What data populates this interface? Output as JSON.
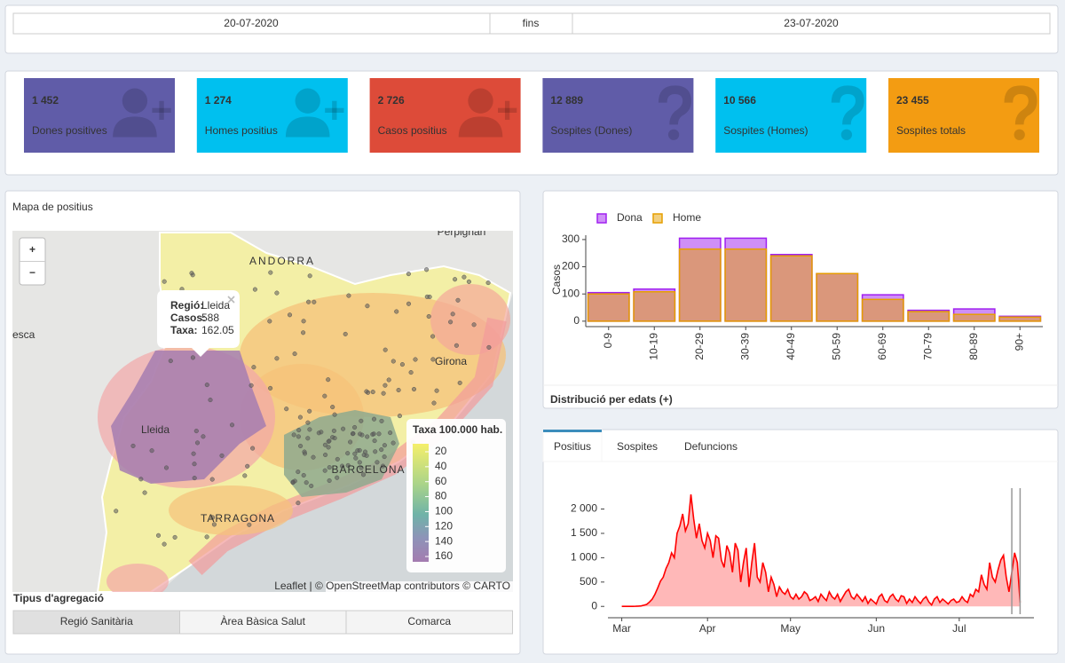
{
  "date_range": {
    "start": "20-07-2020",
    "separator": "fins",
    "end": "23-07-2020"
  },
  "value_boxes": [
    {
      "value": "1 452",
      "label": "Dones positives",
      "color": "#605ca8"
    },
    {
      "value": "1 274",
      "label": "Homes positius",
      "color": "#00c0ef"
    },
    {
      "value": "2 726",
      "label": "Casos positius",
      "color": "#dd4b39"
    },
    {
      "value": "12 889",
      "label": "Sospites (Dones)",
      "color": "#605ca8"
    },
    {
      "value": "10 566",
      "label": "Sospites (Homes)",
      "color": "#00c0ef"
    },
    {
      "value": "23 455",
      "label": "Sospites totals",
      "color": "#f39c12"
    }
  ],
  "map": {
    "title": "Mapa de positius",
    "zoom_in": "+",
    "zoom_out": "−",
    "place_labels": [
      "ANDORRA",
      "Perpignan",
      "esca",
      "Lleida",
      "Girona",
      "BARCELONA",
      "TARRAGONA"
    ],
    "popup": {
      "rows": [
        {
          "key": "Regió:",
          "value": "Lleida"
        },
        {
          "key": "Casos:",
          "value": 588
        },
        {
          "key": "Taxa:",
          "value": 162.05
        }
      ]
    },
    "legend": {
      "title": "Taxa 100.000 hab.",
      "ticks": [
        20,
        40,
        60,
        80,
        100,
        120,
        140,
        160
      ]
    },
    "attribution": "Leaflet | © OpenStreetMap contributors © CARTO"
  },
  "aggregation": {
    "title": "Tipus d'agregació",
    "options": [
      "Regió Sanitària",
      "Àrea Bàsica Salut",
      "Comarca"
    ],
    "selected": 0
  },
  "tabs": {
    "items": [
      "Positius",
      "Sospites",
      "Defuncions"
    ],
    "active": 0
  },
  "chart_data": [
    {
      "type": "bar",
      "barmode": "overlay",
      "ylabel": "Casos",
      "footer": "Distribució per edats (+)",
      "categories": [
        "0-9",
        "10-19",
        "20-29",
        "30-39",
        "40-49",
        "50-59",
        "60-69",
        "70-79",
        "80-89",
        "90+"
      ],
      "series": [
        {
          "name": "Dona",
          "color": "#a020f0",
          "values": [
            105,
            118,
            305,
            305,
            245,
            175,
            97,
            40,
            45,
            18
          ]
        },
        {
          "name": "Home",
          "color": "#e69f00",
          "values": [
            100,
            108,
            265,
            265,
            240,
            175,
            80,
            35,
            25,
            15
          ]
        }
      ],
      "ylim": [
        -20,
        316
      ],
      "yticks": [
        0,
        100,
        200,
        300
      ]
    },
    {
      "type": "area",
      "color": "#ff0000",
      "values": [
        0,
        0,
        0,
        0,
        0,
        2,
        5,
        10,
        25,
        40,
        90,
        150,
        250,
        380,
        520,
        600,
        780,
        900,
        1100,
        1000,
        1500,
        1650,
        1900,
        1550,
        1700,
        2300,
        1800,
        1400,
        1700,
        1350,
        1200,
        1500,
        1350,
        1000,
        1450,
        1400,
        950,
        800,
        1250,
        1100,
        700,
        1300,
        1150,
        500,
        900,
        1200,
        400,
        900,
        1300,
        600,
        500,
        900,
        700,
        300,
        600,
        450,
        200,
        400,
        300,
        250,
        350,
        200,
        150,
        250,
        150,
        200,
        300,
        250,
        120,
        150,
        200,
        100,
        250,
        180,
        120,
        300,
        200,
        150,
        250,
        100,
        200,
        300,
        350,
        200,
        150,
        250,
        180,
        100,
        200,
        60,
        150,
        100,
        50,
        200,
        250,
        120,
        80,
        200,
        250,
        150,
        100,
        220,
        200,
        60,
        150,
        80,
        200,
        120,
        60,
        150,
        200,
        90,
        30,
        150,
        200,
        80,
        150,
        100,
        50,
        120,
        150,
        80,
        100,
        200,
        120,
        80,
        250,
        200,
        350,
        300,
        650,
        450,
        350,
        900,
        600,
        500,
        750,
        950,
        1050,
        600,
        300,
        700,
        1100,
        900,
        80
      ],
      "xlim": [
        -5,
        149
      ],
      "xticks": [
        {
          "value": 0,
          "label": "Mar"
        },
        {
          "value": 31,
          "label": "Apr"
        },
        {
          "value": 61,
          "label": "May"
        },
        {
          "value": 92,
          "label": "Jun"
        },
        {
          "value": 122,
          "label": "Jul"
        }
      ],
      "ylim": [
        -160,
        2520
      ],
      "yticks": [
        0,
        500,
        {
          "value": 1000,
          "label": "1 000"
        },
        {
          "value": 1500,
          "label": "1 500"
        },
        {
          "value": 2000,
          "label": "2 000"
        }
      ],
      "markers": [
        141,
        144
      ]
    }
  ]
}
